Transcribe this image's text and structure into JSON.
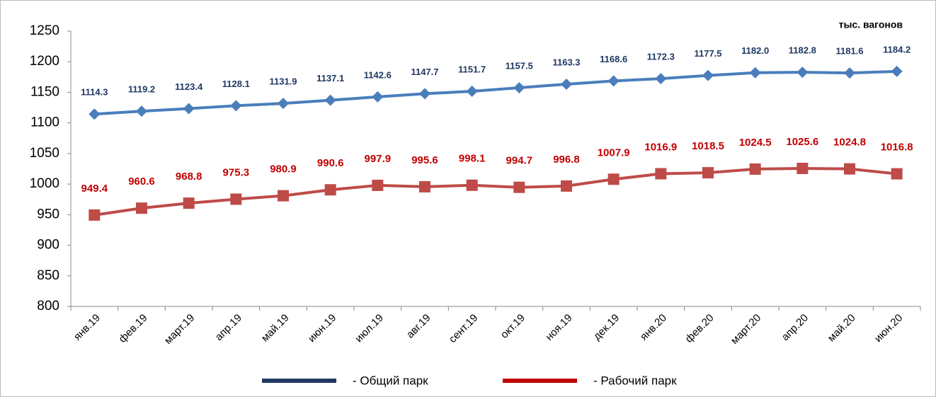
{
  "chart_data": {
    "type": "line",
    "unit_label": "тыс. вагонов",
    "categories": [
      "янв.19",
      "фев.19",
      "март.19",
      "апр.19",
      "май.19",
      "июн.19",
      "июл.19",
      "авг.19",
      "сент.19",
      "окт.19",
      "ноя.19",
      "дек.19",
      "янв.20",
      "фев.20",
      "март.20",
      "апр.20",
      "май.20",
      "июн.20"
    ],
    "series": [
      {
        "name": "- Общий парк",
        "color": "#4a7ebb",
        "label_color": "#1f3864",
        "marker": "diamond",
        "values": [
          1114.3,
          1119.2,
          1123.4,
          1128.1,
          1131.9,
          1137.1,
          1142.6,
          1147.7,
          1151.7,
          1157.5,
          1163.3,
          1168.6,
          1172.3,
          1177.5,
          1182,
          1182.8,
          1181.6,
          1184.2
        ],
        "value_labels": [
          "1114.3",
          "1119.2",
          "1123.4",
          "1128.1",
          "1131.9",
          "1137.1",
          "1142.6",
          "1147.7",
          "1151.7",
          "1157.5",
          "1163.3",
          "1168.6",
          "1172.3",
          "1177.5",
          "1182.0",
          "1182.8",
          "1181.6",
          "1184.2"
        ]
      },
      {
        "name": "- Рабочий парк",
        "color": "#be4b48",
        "label_color": "#c00000",
        "marker": "square",
        "values": [
          949.4,
          960.6,
          968.8,
          975.3,
          980.9,
          990.6,
          997.9,
          995.6,
          998.1,
          994.7,
          996.8,
          1007.9,
          1016.9,
          1018.5,
          1024.5,
          1025.6,
          1024.8,
          1016.8
        ],
        "value_labels": [
          "949.4",
          "960.6",
          "968.8",
          "975.3",
          "980.9",
          "990.6",
          "997.9",
          "995.6",
          "998.1",
          "994.7",
          "996.8",
          "1007.9",
          "1016.9",
          "1018.5",
          "1024.5",
          "1025.6",
          "1024.8",
          "1016.8"
        ]
      }
    ],
    "ylim": [
      800,
      1250
    ],
    "yticks": [
      800,
      850,
      900,
      950,
      1000,
      1050,
      1100,
      1150,
      1200,
      1250
    ]
  }
}
